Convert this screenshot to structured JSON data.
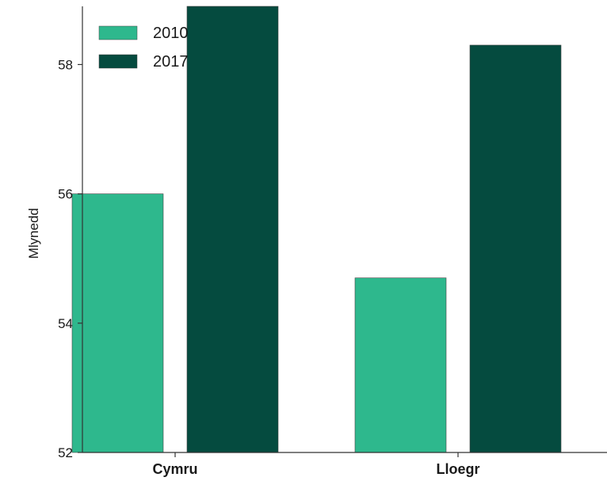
{
  "chart_data": {
    "type": "bar",
    "categories": [
      "Cymru",
      "Lloegr"
    ],
    "series": [
      {
        "name": "2010",
        "values": [
          56.0,
          54.7
        ],
        "color": "#2eb88d"
      },
      {
        "name": "2017",
        "values": [
          58.9,
          58.3
        ],
        "color": "#054b3f"
      }
    ],
    "ylabel": "Mlynedd",
    "ylim": [
      52,
      58.9
    ],
    "yticks": [
      52,
      54,
      56,
      58
    ],
    "legend": "top-left",
    "grid": false
  }
}
